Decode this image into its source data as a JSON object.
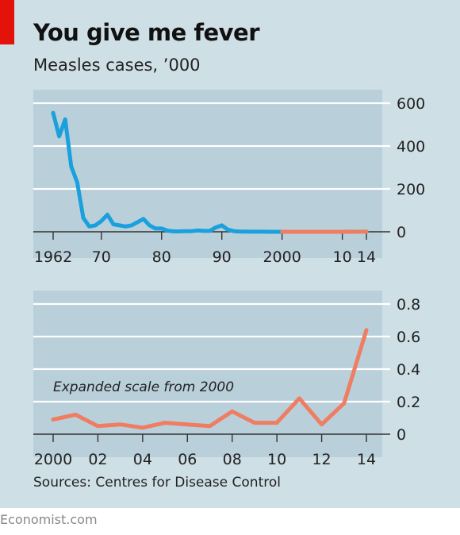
{
  "header": {
    "title": "You give me fever",
    "subtitle": "Measles cases, ’000"
  },
  "footer": {
    "source": "Sources: Centres for Disease Control",
    "brand": "Economist.com"
  },
  "colors": {
    "background": "#cfdfe6",
    "plot_background": "#b9cfda",
    "blue_series": "#1aa1dd",
    "red_series": "#ef7d62",
    "accent_tag": "#e3120b"
  },
  "chart_data": [
    {
      "type": "line",
      "title": "You give me fever",
      "subtitle": "Measles cases, ’000",
      "xlim": [
        1962,
        2014
      ],
      "ylim": [
        0,
        600
      ],
      "yticks": [
        0,
        200,
        400,
        600
      ],
      "ytick_labels": [
        "0",
        "200",
        "400",
        "600"
      ],
      "xticks": [
        1962,
        1970,
        1980,
        1990,
        2000,
        2010,
        2014
      ],
      "xtick_labels": [
        "1962",
        "70",
        "80",
        "90",
        "2000",
        "10",
        "14"
      ],
      "grid": true,
      "axis_position": "right",
      "series": [
        {
          "color": "#1aa1dd",
          "x": [
            1962,
            1963,
            1964,
            1965,
            1966,
            1967,
            1968,
            1969,
            1970,
            1971,
            1972,
            1973,
            1974,
            1975,
            1976,
            1977,
            1978,
            1979,
            1980,
            1981,
            1982,
            1983,
            1984,
            1985,
            1986,
            1987,
            1988,
            1989,
            1990,
            1991,
            1992,
            1993,
            1994,
            1995,
            1996,
            1997,
            1998,
            1999,
            2000
          ],
          "y": [
            555,
            445,
            525,
            305,
            230,
            65,
            25,
            30,
            50,
            80,
            35,
            30,
            25,
            30,
            45,
            60,
            30,
            15,
            15,
            5,
            2,
            2,
            3,
            3,
            6,
            4,
            4,
            20,
            30,
            10,
            3,
            1,
            1,
            0.3,
            0.5,
            0.2,
            0.1,
            0.1,
            0.1
          ]
        },
        {
          "color": "#ef7d62",
          "x": [
            2000,
            2001,
            2002,
            2003,
            2004,
            2005,
            2006,
            2007,
            2008,
            2009,
            2010,
            2011,
            2012,
            2013,
            2014
          ],
          "y": [
            0.09,
            0.12,
            0.05,
            0.06,
            0.04,
            0.07,
            0.06,
            0.05,
            0.14,
            0.07,
            0.07,
            0.22,
            0.06,
            0.19,
            0.64
          ]
        }
      ]
    },
    {
      "type": "line",
      "annotation": "Expanded scale from 2000",
      "xlim": [
        2000,
        2014
      ],
      "ylim": [
        0,
        0.8
      ],
      "yticks": [
        0,
        0.2,
        0.4,
        0.6,
        0.8
      ],
      "ytick_labels": [
        "0",
        "0.2",
        "0.4",
        "0.6",
        "0.8"
      ],
      "xticks": [
        2000,
        2002,
        2004,
        2006,
        2008,
        2010,
        2012,
        2014
      ],
      "xtick_labels": [
        "2000",
        "02",
        "04",
        "06",
        "08",
        "10",
        "12",
        "14"
      ],
      "grid": true,
      "axis_position": "right",
      "series": [
        {
          "color": "#ef7d62",
          "x": [
            2000,
            2001,
            2002,
            2003,
            2004,
            2005,
            2006,
            2007,
            2008,
            2009,
            2010,
            2011,
            2012,
            2013,
            2014
          ],
          "y": [
            0.09,
            0.12,
            0.05,
            0.06,
            0.04,
            0.07,
            0.06,
            0.05,
            0.14,
            0.07,
            0.07,
            0.22,
            0.06,
            0.19,
            0.64
          ]
        }
      ]
    }
  ]
}
